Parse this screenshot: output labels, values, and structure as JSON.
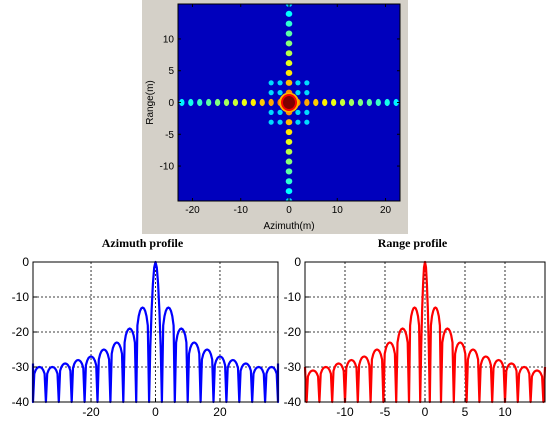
{
  "chart_data": [
    {
      "type": "heatmap",
      "title": "",
      "xlabel": "Azimuth(m)",
      "ylabel": "Range(m)",
      "xlim": [
        -23,
        23
      ],
      "ylim": [
        -15.5,
        15.5
      ],
      "xticks": [
        -20,
        -10,
        0,
        10,
        20
      ],
      "yticks": [
        10,
        5,
        0,
        -5,
        -10
      ],
      "colormap": "jet",
      "peak": {
        "x": 0,
        "y": 0,
        "value": "max"
      },
      "sidelobe_axes": [
        "azimuth",
        "range"
      ]
    },
    {
      "type": "line",
      "title": "Azimuth profile",
      "xlabel": "",
      "ylabel": "",
      "xlim": [
        -38,
        38
      ],
      "ylim": [
        -40,
        0
      ],
      "xticks": [
        -20,
        0,
        20
      ],
      "yticks": [
        0,
        -10,
        -20,
        -30,
        -40
      ],
      "grid": true,
      "color": "#0000ff",
      "x": [
        -36,
        -32,
        -28,
        -24,
        -20,
        -16,
        -12,
        -8,
        -4,
        0,
        4,
        8,
        12,
        16,
        20,
        24,
        28,
        32,
        36
      ],
      "y": [
        -30,
        -30,
        -29,
        -28,
        -27,
        -25,
        -23,
        -19,
        -13,
        0,
        -13,
        -19,
        -23,
        -25,
        -27,
        -28,
        -29,
        -30,
        -30
      ]
    },
    {
      "type": "line",
      "title": "Range profile",
      "xlabel": "",
      "ylabel": "",
      "xlim": [
        -15,
        15
      ],
      "ylim": [
        -40,
        0
      ],
      "xticks": [
        -10,
        -5,
        0,
        5,
        10
      ],
      "yticks": [
        0,
        -10,
        -20,
        -30,
        -40
      ],
      "grid": true,
      "color": "#ff0000",
      "x": [
        -14,
        -12.4,
        -10.8,
        -9.2,
        -7.6,
        -6,
        -4.4,
        -2.8,
        -1.2,
        0,
        1.2,
        2.8,
        4.4,
        6,
        7.6,
        9.2,
        10.8,
        12.4,
        14
      ],
      "y": [
        -31,
        -30,
        -29,
        -28,
        -27,
        -25,
        -23,
        -19,
        -13,
        0,
        -13,
        -19,
        -23,
        -25,
        -27,
        -28,
        -29,
        -30,
        -31
      ]
    }
  ]
}
